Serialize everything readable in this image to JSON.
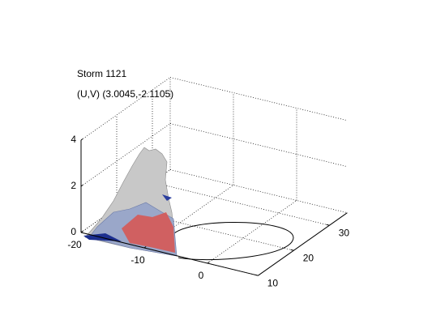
{
  "chart_data": {
    "type": "surface3d",
    "title": "Storm 1121",
    "subtitle": "(U,V) (3.0045,-2.1105)",
    "xlim": [
      -20,
      8
    ],
    "xticks": [
      -20,
      -10,
      0
    ],
    "ylim": [
      10,
      35
    ],
    "yticks": [
      10,
      20,
      30
    ],
    "zlim": [
      0,
      4
    ],
    "zticks": [
      0,
      2,
      4
    ],
    "grid": true
  }
}
